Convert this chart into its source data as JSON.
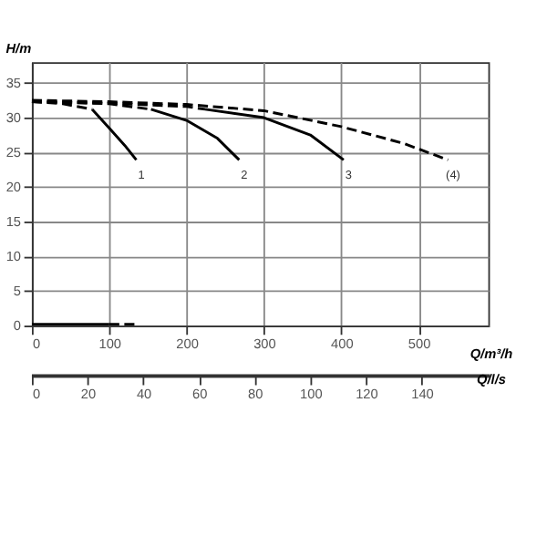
{
  "chart_data": {
    "type": "line",
    "xlabel": "Q/m³/h",
    "ylabel": "H/m",
    "x2label": "Q/l/s",
    "xlim": [
      0,
      590
    ],
    "xticks": [
      0,
      100,
      200,
      300,
      400,
      500
    ],
    "ylim": [
      0,
      38
    ],
    "yticks": [
      0,
      5,
      10,
      15,
      20,
      25,
      30,
      35
    ],
    "x2lim": [
      0,
      163.9
    ],
    "x2ticks": [
      0,
      20,
      40,
      60,
      80,
      100,
      120,
      140
    ],
    "grid": true,
    "marker": "none",
    "series": [
      {
        "color": "#000000",
        "line_style": "dashed",
        "x": [
          0,
          40,
          78
        ],
        "values": [
          32.3,
          32.0,
          31.2
        ]
      },
      {
        "name": "1",
        "color": "#000000",
        "line_style": "solid",
        "x": [
          78,
          100,
          120,
          135
        ],
        "values": [
          31.2,
          28.5,
          26.0,
          23.9
        ]
      },
      {
        "color": "#000000",
        "line_style": "dashed",
        "x": [
          0,
          100,
          154
        ],
        "values": [
          32.3,
          32.0,
          31.2
        ]
      },
      {
        "name": "2",
        "color": "#000000",
        "line_style": "solid",
        "x": [
          154,
          200,
          240,
          268
        ],
        "values": [
          31.2,
          29.6,
          27.0,
          23.9
        ]
      },
      {
        "color": "#000000",
        "line_style": "dashed",
        "x": [
          0,
          100,
          200,
          224
        ],
        "values": [
          32.3,
          32.1,
          31.6,
          31.2
        ]
      },
      {
        "name": "3",
        "color": "#000000",
        "line_style": "solid",
        "x": [
          224,
          300,
          360,
          403
        ],
        "values": [
          31.2,
          30.0,
          27.5,
          23.9
        ]
      },
      {
        "name": "(4)",
        "color": "#000000",
        "line_style": "dashed",
        "x": [
          0,
          100,
          200,
          300,
          400,
          480,
          538
        ],
        "values": [
          32.5,
          32.3,
          31.9,
          31.0,
          28.7,
          26.3,
          23.9
        ]
      },
      {
        "color": "#000000",
        "line_style": "solid",
        "x": [
          0,
          100
        ],
        "values": [
          0.2,
          0.2
        ]
      },
      {
        "color": "#000000",
        "line_style": "dashed",
        "x": [
          100,
          135
        ],
        "values": [
          0.2,
          0.2
        ]
      }
    ]
  }
}
